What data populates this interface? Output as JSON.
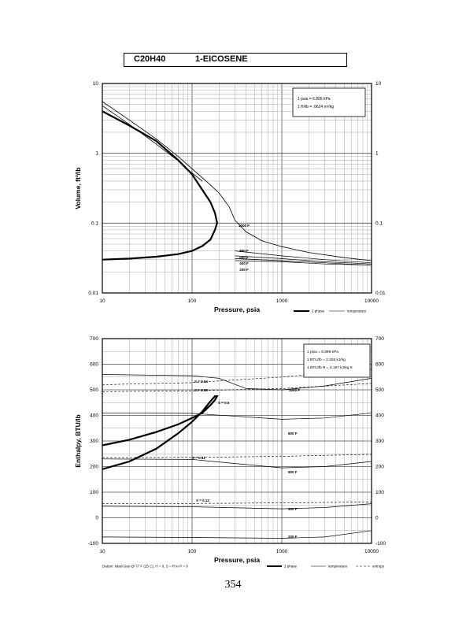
{
  "header": {
    "formula": "C20H40",
    "compound": "1-EICOSENE"
  },
  "page_number": "354",
  "chart_data": [
    {
      "type": "line",
      "xlabel": "Pressure,  psia",
      "ylabel": "Volume, ft^3/lb",
      "xscale": "log",
      "yscale": "log",
      "xlim": [
        10,
        10000
      ],
      "ylim": [
        0.01,
        10
      ],
      "x_ticks": [
        "10",
        "100",
        "1000",
        "10000"
      ],
      "y_ticks": [
        "0.01",
        "0.1",
        "1",
        "10"
      ],
      "grid": true,
      "info_box": [
        "1 psia  =  6.895 kPa",
        "1 ft^3/lb  =  .0624 m^3/kg"
      ],
      "legend": {
        "position": "bottom-right",
        "entries": [
          "2 phase",
          "temperature"
        ]
      },
      "series": [
        {
          "name": "2 phase",
          "style": "thick",
          "x": [
            10,
            20,
            40,
            70,
            100,
            130,
            160,
            180,
            190,
            180,
            160,
            130,
            100,
            70,
            40,
            20,
            10
          ],
          "y": [
            0.03,
            0.031,
            0.033,
            0.036,
            0.04,
            0.047,
            0.058,
            0.08,
            0.1,
            0.14,
            0.2,
            0.3,
            0.5,
            0.8,
            1.5,
            2.5,
            4.0
          ]
        },
        {
          "name": "",
          "style": "thin",
          "x": [
            10,
            20,
            40,
            70,
            100,
            150,
            200,
            260,
            300,
            400,
            600,
            1000,
            2000,
            5000,
            10000
          ],
          "y": [
            5.5,
            3.0,
            1.6,
            0.9,
            0.6,
            0.38,
            0.27,
            0.17,
            0.11,
            0.075,
            0.056,
            0.046,
            0.038,
            0.032,
            0.029
          ]
        },
        {
          "name": "",
          "style": "thin",
          "x": [
            10,
            20,
            40,
            70,
            100,
            130
          ],
          "y": [
            4.8,
            2.6,
            1.35,
            0.78,
            0.52,
            0.4
          ]
        }
      ],
      "isotherm_labels": [
        "1000 F",
        "800 F",
        "600 F",
        "400 F",
        "200 F"
      ],
      "isotherms": [
        {
          "label": "800 F",
          "x": [
            300,
            1000,
            3000,
            10000
          ],
          "y": [
            0.04,
            0.034,
            0.03,
            0.027
          ]
        },
        {
          "label": "600 F",
          "x": [
            300,
            1000,
            3000,
            10000
          ],
          "y": [
            0.034,
            0.031,
            0.028,
            0.026
          ]
        },
        {
          "label": "400 F",
          "x": [
            300,
            1000,
            3000,
            10000
          ],
          "y": [
            0.031,
            0.029,
            0.027,
            0.025
          ]
        },
        {
          "label": "200 F",
          "x": [
            300,
            1000,
            3000,
            10000
          ],
          "y": [
            0.029,
            0.028,
            0.026,
            0.025
          ]
        }
      ]
    },
    {
      "type": "line",
      "xlabel": "Pressure,  psia",
      "ylabel": "Enthalpy, BTU/lb",
      "xscale": "log",
      "xlim": [
        10,
        10000
      ],
      "ylim": [
        -100,
        700
      ],
      "x_ticks": [
        "10",
        "100",
        "1000",
        "10000"
      ],
      "y_ticks": [
        "-100",
        "0",
        "100",
        "200",
        "300",
        "400",
        "500",
        "600",
        "700"
      ],
      "grid": true,
      "info_box": [
        "1 psia  =  6.895 kPa",
        "1 BTU/lb  =  2.326 kJ/kg",
        "1 BTU/lb R  =  4.187 kJ/kg K"
      ],
      "legend": {
        "position": "bottom-right",
        "entries": [
          "2 phase",
          "temperature",
          "entropy"
        ]
      },
      "footnote": "Datum: Ideal Gas @ 77 F (25 C),  H = 0,  S = R ln P = 0",
      "series": [
        {
          "name": "2 phase",
          "style": "thick",
          "x": [
            10,
            20,
            40,
            70,
            100,
            130,
            160,
            180,
            190,
            180,
            160,
            130,
            100,
            70,
            40,
            20,
            10
          ],
          "y": [
            283,
            305,
            335,
            365,
            390,
            410,
            440,
            460,
            475,
            475,
            455,
            415,
            375,
            330,
            270,
            220,
            190
          ]
        }
      ],
      "entropy_labels": [
        "S = 0.54",
        "S = 0.53",
        "S = 0.5",
        "S = 0.31",
        "S = 0.12"
      ],
      "entropy_lines": [
        {
          "label": "S = 0.54",
          "x": [
            10,
            100,
            1000,
            10000
          ],
          "y": [
            520,
            528,
            550,
            580
          ]
        },
        {
          "label": "S = 0.53",
          "x": [
            10,
            100,
            1000,
            10000
          ],
          "y": [
            493,
            496,
            505,
            525
          ]
        },
        {
          "label": "S = 0.31",
          "x": [
            10,
            100,
            1000,
            10000
          ],
          "y": [
            235,
            236,
            240,
            248
          ]
        },
        {
          "label": "S = 0.12",
          "x": [
            10,
            100,
            1000,
            10000
          ],
          "y": [
            55,
            56,
            58,
            62
          ]
        }
      ],
      "isotherm_labels": [
        "1000 F",
        "800 F",
        "600 F",
        "400 F",
        "200 F"
      ],
      "isotherms": [
        {
          "label": "1000 F",
          "x": [
            10,
            100,
            200,
            400,
            1000,
            3000,
            10000
          ],
          "y": [
            560,
            555,
            545,
            505,
            500,
            515,
            545
          ]
        },
        {
          "label": "800 F",
          "x": [
            10,
            100,
            1000,
            3000,
            10000
          ],
          "y": [
            410,
            408,
            385,
            390,
            410
          ]
        },
        {
          "label": "600 F",
          "x": [
            10,
            100,
            1000,
            3000,
            10000
          ],
          "y": [
            230,
            228,
            195,
            200,
            220
          ]
        },
        {
          "label": "400 F",
          "x": [
            10,
            100,
            1000,
            3000,
            10000
          ],
          "y": [
            45,
            43,
            35,
            40,
            55
          ]
        },
        {
          "label": "200 F",
          "x": [
            10,
            100,
            1000,
            3000,
            10000
          ],
          "y": [
            -75,
            -77,
            -80,
            -75,
            -50
          ]
        }
      ]
    }
  ]
}
